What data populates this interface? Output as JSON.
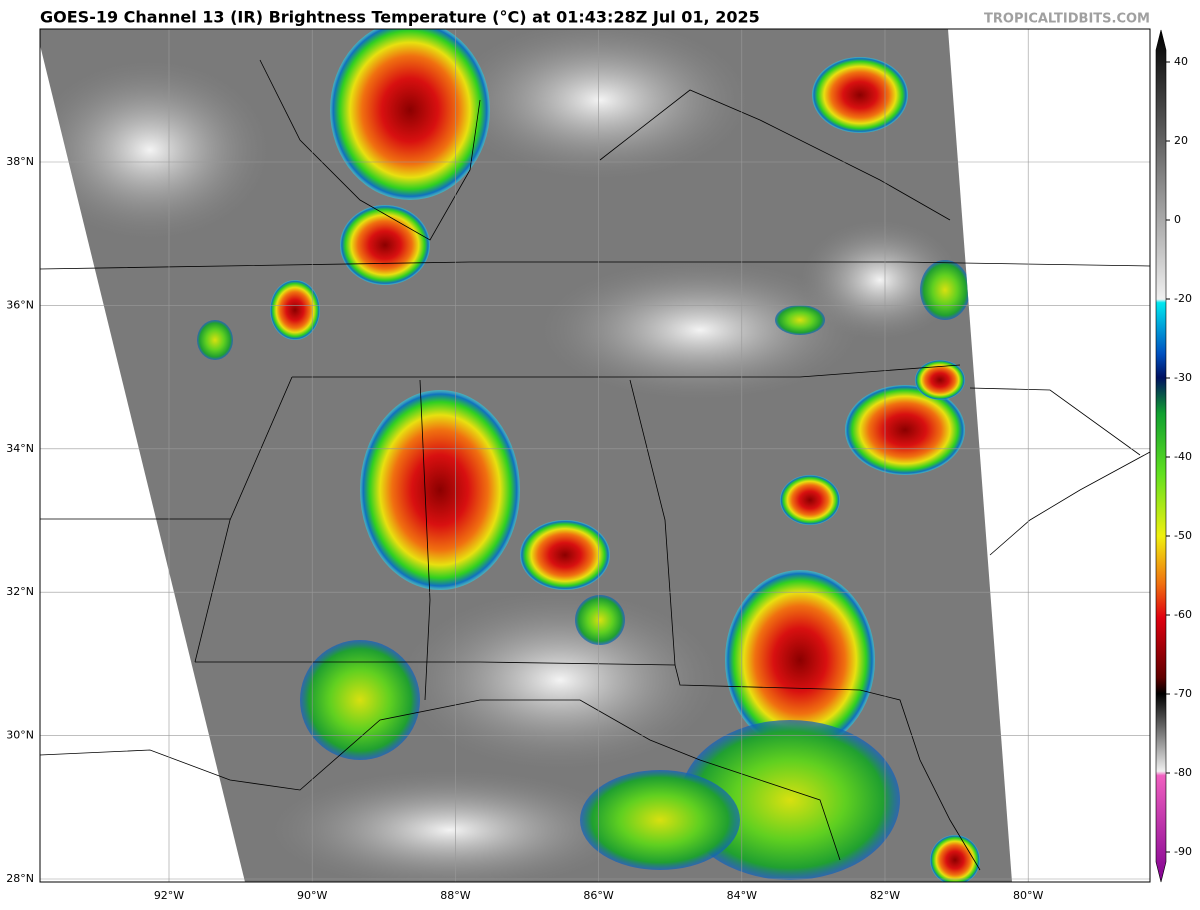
{
  "title": "GOES-19 Channel 13 (IR) Brightness Temperature (°C) at 01:43:28Z Jul 01, 2025",
  "watermark": "TROPICALTIDBITS.COM",
  "lat_labels": [
    "38°N",
    "36°N",
    "34°N",
    "32°N",
    "30°N",
    "28°N"
  ],
  "lon_labels": [
    "92°W",
    "90°W",
    "88°W",
    "86°W",
    "84°W",
    "82°W",
    "80°W"
  ],
  "colorbar": {
    "ticks": [
      40,
      20,
      0,
      -20,
      -30,
      -40,
      -50,
      -60,
      -70,
      -80,
      -90
    ]
  }
}
